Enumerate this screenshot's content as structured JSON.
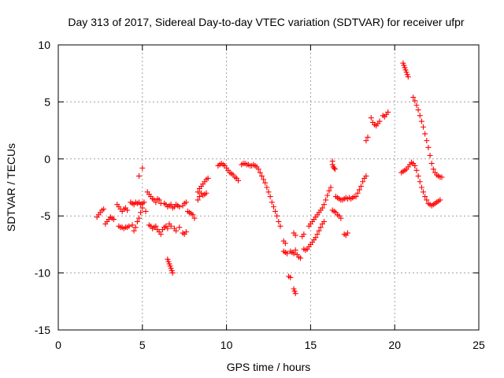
{
  "chart_data": {
    "type": "scatter",
    "title": "Day 313 of 2017, Sidereal Day-to-day VTEC variation (SDTVAR) for receiver ufpr",
    "xlabel": "GPS time / hours",
    "ylabel": "SDTVAR / TECUs",
    "xlim": [
      0,
      25
    ],
    "ylim": [
      -15,
      10
    ],
    "xticks": [
      0,
      5,
      10,
      15,
      20,
      25
    ],
    "yticks": [
      -15,
      -10,
      -5,
      0,
      5,
      10
    ],
    "xtick_labels": [
      "0",
      "5",
      "10",
      "15",
      "20",
      "25"
    ],
    "ytick_labels": [
      "-15",
      "-10",
      "-5",
      "0",
      "5",
      "10"
    ],
    "grid": true,
    "marker": "plus",
    "color": "#ff0000",
    "series": [
      {
        "name": "SDTVAR",
        "points": [
          [
            2.3,
            -5.1
          ],
          [
            2.4,
            -4.9
          ],
          [
            2.5,
            -4.7
          ],
          [
            2.6,
            -4.5
          ],
          [
            2.7,
            -4.4
          ],
          [
            2.8,
            -5.7
          ],
          [
            2.9,
            -5.5
          ],
          [
            3.0,
            -5.3
          ],
          [
            3.1,
            -5.1
          ],
          [
            3.2,
            -5.2
          ],
          [
            3.3,
            -5.3
          ],
          [
            3.5,
            -4.0
          ],
          [
            3.6,
            -4.2
          ],
          [
            3.7,
            -4.4
          ],
          [
            3.8,
            -4.6
          ],
          [
            3.9,
            -4.4
          ],
          [
            4.0,
            -4.3
          ],
          [
            4.1,
            -4.5
          ],
          [
            3.6,
            -5.9
          ],
          [
            3.7,
            -6.0
          ],
          [
            3.8,
            -6.0
          ],
          [
            3.9,
            -6.1
          ],
          [
            4.0,
            -6.0
          ],
          [
            4.1,
            -6.0
          ],
          [
            4.2,
            -5.9
          ],
          [
            4.3,
            -3.8
          ],
          [
            4.4,
            -3.9
          ],
          [
            4.5,
            -4.0
          ],
          [
            4.6,
            -3.8
          ],
          [
            4.7,
            -3.9
          ],
          [
            4.8,
            -3.8
          ],
          [
            4.9,
            -4.0
          ],
          [
            5.0,
            -3.9
          ],
          [
            4.4,
            -5.8
          ],
          [
            4.5,
            -6.3
          ],
          [
            4.6,
            -6.0
          ],
          [
            4.7,
            -5.5
          ],
          [
            4.8,
            -5.2
          ],
          [
            4.9,
            -4.7
          ],
          [
            5.0,
            -4.3
          ],
          [
            4.8,
            -1.5
          ],
          [
            5.0,
            -0.8
          ],
          [
            5.1,
            -3.8
          ],
          [
            5.2,
            -4.6
          ],
          [
            5.3,
            -2.9
          ],
          [
            5.4,
            -3.1
          ],
          [
            5.5,
            -3.3
          ],
          [
            5.6,
            -3.5
          ],
          [
            5.7,
            -3.6
          ],
          [
            5.8,
            -3.8
          ],
          [
            5.9,
            -3.5
          ],
          [
            6.0,
            -3.6
          ],
          [
            6.1,
            -3.9
          ],
          [
            5.4,
            -5.8
          ],
          [
            5.5,
            -5.9
          ],
          [
            5.6,
            -6.1
          ],
          [
            5.7,
            -6.0
          ],
          [
            5.8,
            -5.9
          ],
          [
            5.9,
            -6.2
          ],
          [
            6.0,
            -6.4
          ],
          [
            6.1,
            -6.6
          ],
          [
            6.2,
            -6.2
          ],
          [
            6.3,
            -6.0
          ],
          [
            6.4,
            -5.9
          ],
          [
            6.5,
            -6.1
          ],
          [
            6.6,
            -5.7
          ],
          [
            6.7,
            -5.9
          ],
          [
            6.3,
            -3.9
          ],
          [
            6.4,
            -4.0
          ],
          [
            6.5,
            -4.2
          ],
          [
            6.6,
            -4.1
          ],
          [
            6.7,
            -4.0
          ],
          [
            6.8,
            -4.3
          ],
          [
            6.9,
            -4.2
          ],
          [
            7.0,
            -4.0
          ],
          [
            7.1,
            -4.1
          ],
          [
            7.2,
            -4.2
          ],
          [
            7.4,
            -4.1
          ],
          [
            7.5,
            -3.9
          ],
          [
            7.6,
            -3.8
          ],
          [
            6.5,
            -8.8
          ],
          [
            6.55,
            -9.0
          ],
          [
            6.6,
            -9.2
          ],
          [
            6.65,
            -9.4
          ],
          [
            6.7,
            -9.6
          ],
          [
            6.75,
            -9.8
          ],
          [
            6.8,
            -10.0
          ],
          [
            6.9,
            -6.1
          ],
          [
            7.0,
            -6.3
          ],
          [
            7.2,
            -6.0
          ],
          [
            7.4,
            -6.5
          ],
          [
            7.5,
            -6.6
          ],
          [
            7.6,
            -6.4
          ],
          [
            7.7,
            -4.6
          ],
          [
            7.8,
            -4.7
          ],
          [
            7.9,
            -4.8
          ],
          [
            8.0,
            -4.9
          ],
          [
            8.1,
            -5.2
          ],
          [
            8.3,
            -3.6
          ],
          [
            8.4,
            -3.3
          ],
          [
            8.5,
            -3.0
          ],
          [
            8.6,
            -3.2
          ],
          [
            8.7,
            -3.1
          ],
          [
            8.8,
            -3.0
          ],
          [
            8.3,
            -2.9
          ],
          [
            8.4,
            -2.6
          ],
          [
            8.5,
            -2.4
          ],
          [
            8.6,
            -2.2
          ],
          [
            8.7,
            -2.0
          ],
          [
            8.8,
            -1.8
          ],
          [
            8.9,
            -1.7
          ],
          [
            9.5,
            -0.6
          ],
          [
            9.6,
            -0.5
          ],
          [
            9.7,
            -0.4
          ],
          [
            9.8,
            -0.5
          ],
          [
            9.9,
            -0.6
          ],
          [
            10.0,
            -0.8
          ],
          [
            10.1,
            -1.0
          ],
          [
            10.2,
            -1.2
          ],
          [
            10.3,
            -1.3
          ],
          [
            10.4,
            -1.4
          ],
          [
            10.5,
            -1.6
          ],
          [
            10.6,
            -1.7
          ],
          [
            10.7,
            -1.9
          ],
          [
            10.9,
            -0.5
          ],
          [
            11.0,
            -0.4
          ],
          [
            11.1,
            -0.4
          ],
          [
            11.2,
            -0.5
          ],
          [
            11.3,
            -0.5
          ],
          [
            11.4,
            -0.6
          ],
          [
            11.5,
            -0.6
          ],
          [
            11.6,
            -0.5
          ],
          [
            11.7,
            -0.6
          ],
          [
            11.8,
            -0.7
          ],
          [
            11.9,
            -0.9
          ],
          [
            12.0,
            -1.2
          ],
          [
            12.1,
            -1.5
          ],
          [
            12.2,
            -1.8
          ],
          [
            12.3,
            -2.1
          ],
          [
            12.4,
            -2.5
          ],
          [
            12.5,
            -2.9
          ],
          [
            12.6,
            -3.3
          ],
          [
            12.7,
            -3.8
          ],
          [
            12.8,
            -4.2
          ],
          [
            12.9,
            -4.6
          ],
          [
            13.0,
            -5.0
          ],
          [
            13.1,
            -5.5
          ],
          [
            13.2,
            -5.9
          ],
          [
            13.4,
            -7.2
          ],
          [
            13.5,
            -7.4
          ],
          [
            13.4,
            -8.1
          ],
          [
            13.5,
            -8.2
          ],
          [
            13.6,
            -8.3
          ],
          [
            13.8,
            -8.1
          ],
          [
            13.9,
            -8.2
          ],
          [
            14.0,
            -8.3
          ],
          [
            14.1,
            -8.0
          ],
          [
            14.2,
            -8.4
          ],
          [
            14.3,
            -8.6
          ],
          [
            14.4,
            -8.7
          ],
          [
            13.7,
            -10.3
          ],
          [
            13.8,
            -10.4
          ],
          [
            14.0,
            -11.4
          ],
          [
            14.05,
            -11.6
          ],
          [
            14.1,
            -11.8
          ],
          [
            14.0,
            -6.5
          ],
          [
            14.1,
            -6.7
          ],
          [
            14.5,
            -6.8
          ],
          [
            14.6,
            -6.6
          ],
          [
            14.6,
            -7.9
          ],
          [
            14.7,
            -8.0
          ],
          [
            14.8,
            -7.9
          ],
          [
            14.9,
            -7.7
          ],
          [
            15.0,
            -7.5
          ],
          [
            15.1,
            -7.3
          ],
          [
            15.2,
            -7.1
          ],
          [
            15.3,
            -6.9
          ],
          [
            15.4,
            -6.6
          ],
          [
            15.5,
            -6.3
          ],
          [
            15.6,
            -6.0
          ],
          [
            15.7,
            -5.7
          ],
          [
            15.8,
            -5.5
          ],
          [
            14.9,
            -5.9
          ],
          [
            15.0,
            -5.7
          ],
          [
            15.1,
            -5.5
          ],
          [
            15.2,
            -5.3
          ],
          [
            15.3,
            -5.1
          ],
          [
            15.4,
            -4.9
          ],
          [
            15.5,
            -4.7
          ],
          [
            15.6,
            -4.5
          ],
          [
            15.7,
            -4.3
          ],
          [
            15.8,
            -4.0
          ],
          [
            15.9,
            -3.6
          ],
          [
            16.0,
            -3.2
          ],
          [
            16.1,
            -2.8
          ],
          [
            16.2,
            -2.5
          ],
          [
            16.3,
            -0.2
          ],
          [
            16.3,
            -0.5
          ],
          [
            16.35,
            -0.7
          ],
          [
            16.4,
            -0.8
          ],
          [
            16.45,
            -0.9
          ],
          [
            16.3,
            -4.5
          ],
          [
            16.4,
            -4.6
          ],
          [
            16.5,
            -4.7
          ],
          [
            16.6,
            -4.9
          ],
          [
            16.7,
            -5.0
          ],
          [
            16.8,
            -5.2
          ],
          [
            16.5,
            -3.3
          ],
          [
            16.6,
            -3.4
          ],
          [
            16.7,
            -3.5
          ],
          [
            16.8,
            -3.6
          ],
          [
            16.9,
            -3.6
          ],
          [
            17.0,
            -3.5
          ],
          [
            17.1,
            -3.4
          ],
          [
            17.2,
            -3.5
          ],
          [
            17.3,
            -3.4
          ],
          [
            17.4,
            -3.5
          ],
          [
            17.5,
            -3.4
          ],
          [
            17.6,
            -3.3
          ],
          [
            17.0,
            -6.6
          ],
          [
            17.1,
            -6.7
          ],
          [
            17.2,
            -6.5
          ],
          [
            17.7,
            -3.3
          ],
          [
            17.8,
            -3.0
          ],
          [
            17.9,
            -2.7
          ],
          [
            18.0,
            -2.4
          ],
          [
            18.1,
            -2.0
          ],
          [
            18.2,
            -1.7
          ],
          [
            18.3,
            -1.5
          ],
          [
            18.3,
            1.6
          ],
          [
            18.4,
            1.9
          ],
          [
            18.6,
            3.6
          ],
          [
            18.7,
            3.2
          ],
          [
            18.8,
            3.0
          ],
          [
            18.9,
            2.9
          ],
          [
            19.0,
            3.1
          ],
          [
            19.1,
            3.3
          ],
          [
            19.3,
            3.8
          ],
          [
            19.4,
            3.7
          ],
          [
            19.5,
            3.9
          ],
          [
            19.6,
            4.1
          ],
          [
            20.4,
            -1.2
          ],
          [
            20.5,
            -1.1
          ],
          [
            20.6,
            -1.0
          ],
          [
            20.7,
            -0.9
          ],
          [
            20.8,
            -0.7
          ],
          [
            20.9,
            -0.5
          ],
          [
            21.0,
            -0.3
          ],
          [
            21.1,
            -0.4
          ],
          [
            21.2,
            -0.6
          ],
          [
            20.5,
            8.4
          ],
          [
            20.55,
            8.2
          ],
          [
            20.6,
            8.0
          ],
          [
            20.65,
            7.8
          ],
          [
            20.7,
            7.6
          ],
          [
            20.75,
            7.4
          ],
          [
            20.8,
            7.2
          ],
          [
            21.1,
            5.4
          ],
          [
            21.2,
            5.1
          ],
          [
            21.3,
            4.7
          ],
          [
            21.4,
            4.3
          ],
          [
            21.5,
            3.8
          ],
          [
            21.6,
            3.3
          ],
          [
            21.7,
            2.8
          ],
          [
            21.8,
            2.2
          ],
          [
            21.9,
            1.6
          ],
          [
            22.0,
            1.0
          ],
          [
            22.1,
            0.3
          ],
          [
            22.2,
            -0.4
          ],
          [
            22.3,
            -0.9
          ],
          [
            22.4,
            -1.2
          ],
          [
            22.5,
            -1.4
          ],
          [
            22.6,
            -1.5
          ],
          [
            22.7,
            -1.6
          ],
          [
            22.8,
            -1.6
          ],
          [
            21.2,
            -0.6
          ],
          [
            21.3,
            -1.0
          ],
          [
            21.4,
            -1.5
          ],
          [
            21.5,
            -2.0
          ],
          [
            21.6,
            -2.5
          ],
          [
            21.7,
            -2.9
          ],
          [
            21.8,
            -3.3
          ],
          [
            21.9,
            -3.6
          ],
          [
            22.0,
            -3.9
          ],
          [
            22.1,
            -4.0
          ],
          [
            22.2,
            -4.1
          ],
          [
            22.3,
            -4.0
          ],
          [
            22.4,
            -3.9
          ],
          [
            22.5,
            -3.8
          ],
          [
            22.6,
            -3.7
          ],
          [
            22.7,
            -3.6
          ]
        ]
      }
    ]
  }
}
